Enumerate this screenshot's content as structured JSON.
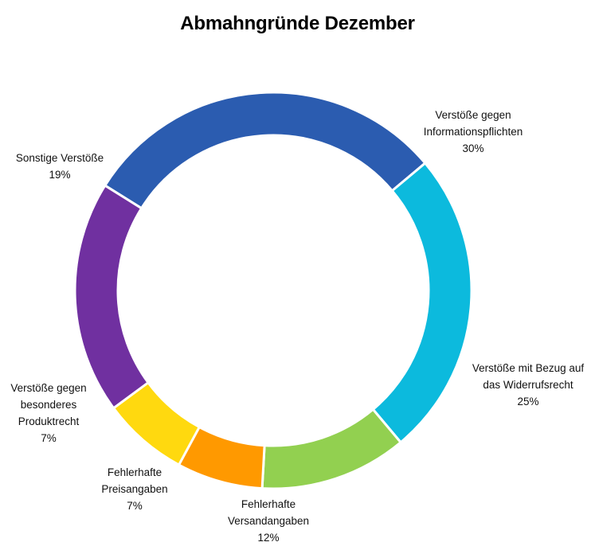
{
  "chart_data": {
    "type": "pie",
    "variant": "doughnut",
    "title": "Abmahngründe Dezember",
    "series": [
      {
        "name": "Verstöße gegen Informationspflichten",
        "value": 30,
        "label_lines": [
          "Verstöße gegen",
          "Informationspflichten",
          "30%"
        ],
        "color": "#2B5CB0"
      },
      {
        "name": "Verstöße mit Bezug auf das Widerrufsrecht",
        "value": 25,
        "label_lines": [
          "Verstöße mit Bezug auf",
          "das Widerrufsrecht",
          "25%"
        ],
        "color": "#0CBADD"
      },
      {
        "name": "Fehlerhafte Versandangaben",
        "value": 12,
        "label_lines": [
          "Fehlerhafte",
          "Versandangaben",
          "12%"
        ],
        "color": "#92D050"
      },
      {
        "name": "Fehlerhafte Preisangaben",
        "value": 7,
        "label_lines": [
          "Fehlerhafte",
          "Preisangaben",
          "7%"
        ],
        "color": "#FF9900"
      },
      {
        "name": "Verstöße gegen besonderes Produktrecht",
        "value": 7,
        "label_lines": [
          "Verstöße gegen",
          "besonderes",
          "Produktrecht",
          "7%"
        ],
        "color": "#FFD90F"
      },
      {
        "name": "Sonstige Verstöße",
        "value": 19,
        "label_lines": [
          "Sonstige Verstöße",
          "19%"
        ],
        "color": "#7030A0"
      }
    ],
    "legend": "none",
    "data_labels": "outside"
  }
}
